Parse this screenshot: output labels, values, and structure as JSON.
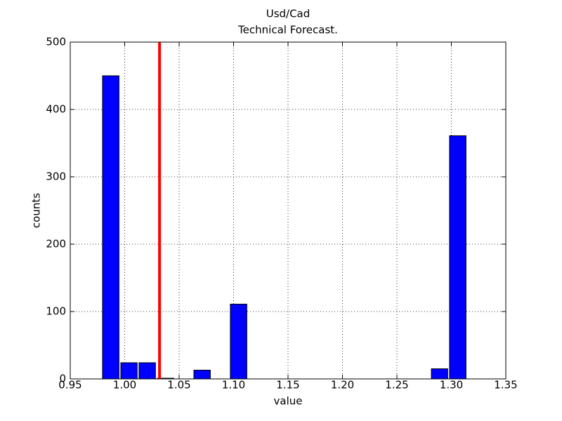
{
  "chart_data": {
    "type": "histogram",
    "title": "Usd/Cad",
    "subtitle": "Technical Forecast.",
    "x_label": "value",
    "y_label": "counts",
    "bins": [
      0.9788,
      0.9956,
      1.0123,
      1.0291,
      1.0459,
      1.0627,
      1.0795,
      1.0962,
      1.113,
      1.1298,
      1.1466,
      1.1633,
      1.1801,
      1.1969,
      1.2137,
      1.2304,
      1.2472,
      1.264,
      1.2808,
      1.2975,
      1.3143
    ],
    "values": [
      450,
      24,
      24,
      1,
      0,
      13,
      0,
      111,
      0,
      0,
      0,
      0,
      0,
      0,
      0,
      0,
      0,
      0,
      15,
      361
    ],
    "color": "#0000ff",
    "vline": 1.032,
    "vline_color": "#ff0000",
    "xlim": [
      0.95,
      1.35
    ],
    "xticks": [
      0.95,
      {
        "value": 1,
        "label": "1.00"
      },
      1.05,
      {
        "value": 1.1,
        "label": "1.10"
      },
      1.15,
      {
        "value": 1.2,
        "label": "1.20"
      },
      1.25,
      {
        "value": 1.3,
        "label": "1.30"
      },
      1.35
    ],
    "ylim": [
      0,
      500
    ],
    "yticks": [
      0,
      100,
      200,
      300,
      400,
      500
    ],
    "grid": true
  }
}
